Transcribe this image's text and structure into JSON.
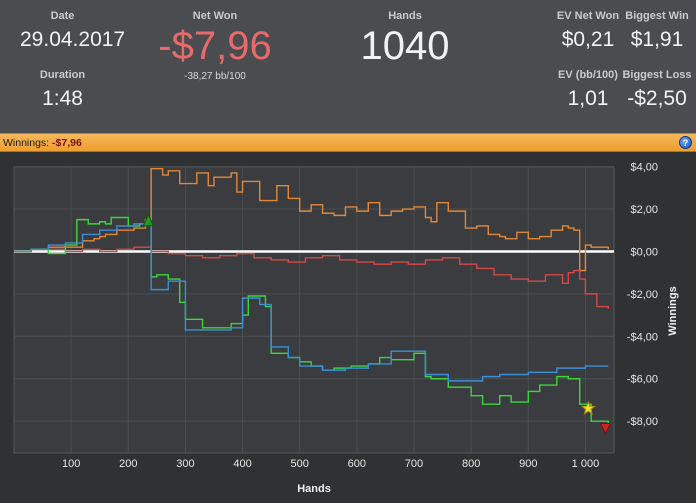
{
  "stats": {
    "date": {
      "label": "Date",
      "value": "29.04.2017"
    },
    "duration": {
      "label": "Duration",
      "value": "1:48"
    },
    "net_won": {
      "label": "Net Won",
      "value": "-$7,96",
      "sub": "-38,27 bb/100"
    },
    "hands": {
      "label": "Hands",
      "value": "1040"
    },
    "ev_net_won": {
      "label": "EV Net Won",
      "value": "$0,21"
    },
    "biggest_win": {
      "label": "Biggest Win",
      "value": "$1,91"
    },
    "ev_bb100": {
      "label": "EV (bb/100)",
      "value": "1,01"
    },
    "biggest_loss": {
      "label": "Biggest Loss",
      "value": "-$2,50"
    }
  },
  "bar": {
    "label": "Winnings:",
    "value": "-$7,96",
    "help_icon": "?"
  },
  "colors": {
    "accent_bar": "#f0a838",
    "net_won_negative": "#e66a6a",
    "orange": "#e0883a",
    "red": "#d64848",
    "green": "#3cd63c",
    "blue": "#3c8fd6",
    "zero_line": "#ffffff"
  },
  "chart_data": {
    "type": "line",
    "xlabel": "Hands",
    "ylabel": "Winnings",
    "xlim": [
      0,
      1050
    ],
    "ylim": [
      -9.5,
      5.3
    ],
    "x_ticks": [
      100,
      200,
      300,
      400,
      500,
      600,
      700,
      800,
      900,
      1000
    ],
    "x_tick_labels": [
      "100",
      "200",
      "300",
      "400",
      "500",
      "600",
      "700",
      "800",
      "900",
      "1 000"
    ],
    "y_ticks": [
      4,
      2,
      0,
      -2,
      -4,
      -6,
      -8
    ],
    "y_tick_labels": [
      "$4,00",
      "$2,00",
      "$0,00",
      "-$2,00",
      "-$4,00",
      "-$6,00",
      "-$8,00"
    ],
    "grid": true,
    "series": [
      {
        "color": "orange",
        "x": [
          0,
          30,
          60,
          90,
          120,
          140,
          150,
          160,
          180,
          210,
          230,
          240,
          260,
          270,
          290,
          320,
          340,
          350,
          380,
          390,
          400,
          430,
          460,
          480,
          500,
          520,
          540,
          560,
          580,
          600,
          620,
          640,
          660,
          680,
          700,
          720,
          730,
          740,
          760,
          790,
          810,
          830,
          850,
          860,
          880,
          900,
          920,
          940,
          960,
          970,
          980,
          990,
          1000,
          1010,
          1020,
          1040
        ],
        "y": [
          0,
          0.1,
          0.2,
          0.2,
          0.5,
          0.6,
          0.7,
          0.8,
          1.0,
          1.1,
          1.5,
          3.9,
          3.6,
          3.8,
          3.2,
          3.7,
          3.1,
          3.5,
          3.7,
          2.8,
          3.3,
          2.4,
          3.1,
          2.5,
          1.9,
          2.2,
          1.8,
          1.7,
          2.1,
          1.9,
          2.3,
          1.7,
          1.9,
          2.0,
          2.1,
          1.6,
          1.4,
          2.3,
          1.9,
          1.1,
          1.2,
          0.8,
          0.7,
          0.6,
          0.9,
          0.6,
          0.7,
          1.0,
          1.2,
          1.1,
          1.0,
          -0.9,
          0.3,
          0.2,
          0.2,
          0.1
        ]
      },
      {
        "color": "red",
        "x": [
          0,
          30,
          60,
          90,
          120,
          150,
          180,
          210,
          240,
          270,
          300,
          330,
          360,
          390,
          420,
          450,
          480,
          510,
          540,
          570,
          600,
          630,
          660,
          690,
          720,
          750,
          780,
          810,
          840,
          870,
          900,
          930,
          960,
          970,
          980,
          990,
          1000,
          1020,
          1040
        ],
        "y": [
          0,
          0.1,
          0.1,
          0.0,
          0.1,
          0.0,
          0.1,
          0.2,
          0.0,
          -0.1,
          -0.2,
          -0.3,
          -0.2,
          -0.1,
          -0.3,
          -0.4,
          -0.5,
          -0.3,
          -0.2,
          -0.4,
          -0.5,
          -0.6,
          -0.5,
          -0.6,
          -0.4,
          -0.3,
          -0.6,
          -0.8,
          -1.1,
          -1.3,
          -1.4,
          -1.1,
          -1.5,
          -1.0,
          -0.9,
          -1.3,
          -2.0,
          -2.6,
          -2.7
        ]
      },
      {
        "color": "green",
        "x": [
          0,
          30,
          60,
          90,
          110,
          130,
          150,
          160,
          170,
          200,
          220,
          235,
          240,
          250,
          270,
          290,
          300,
          330,
          380,
          400,
          410,
          440,
          450,
          480,
          500,
          520,
          540,
          560,
          590,
          620,
          640,
          660,
          700,
          720,
          730,
          760,
          800,
          820,
          850,
          870,
          900,
          920,
          950,
          970,
          990,
          1010,
          1040
        ],
        "y": [
          0,
          0.1,
          -0.1,
          0.3,
          1.5,
          1.3,
          1.4,
          1.3,
          1.6,
          1.2,
          1.3,
          1.4,
          -1.2,
          -1.1,
          -1.3,
          -2.4,
          -3.2,
          -3.6,
          -3.4,
          -3.0,
          -2.1,
          -2.6,
          -4.8,
          -5.0,
          -5.2,
          -5.4,
          -5.6,
          -5.5,
          -5.4,
          -5.3,
          -5.0,
          -5.1,
          -4.8,
          -5.9,
          -6.0,
          -6.4,
          -6.8,
          -7.2,
          -6.8,
          -7.1,
          -6.6,
          -6.3,
          -5.9,
          -6.0,
          -7.2,
          -8.0,
          -8.3
        ]
      },
      {
        "color": "blue",
        "x": [
          0,
          30,
          60,
          90,
          120,
          150,
          180,
          210,
          235,
          240,
          270,
          300,
          330,
          380,
          400,
          430,
          450,
          480,
          500,
          540,
          580,
          620,
          660,
          700,
          720,
          760,
          800,
          820,
          850,
          900,
          950,
          1000,
          1040
        ],
        "y": [
          0,
          0.1,
          0.3,
          0.4,
          0.8,
          1.0,
          1.2,
          1.3,
          1.3,
          -1.8,
          -1.4,
          -3.7,
          -3.7,
          -3.6,
          -2.2,
          -2.5,
          -4.5,
          -5.0,
          -5.4,
          -5.6,
          -5.5,
          -5.3,
          -4.7,
          -4.7,
          -5.8,
          -6.1,
          -6.1,
          -5.9,
          -5.8,
          -5.7,
          -5.5,
          -5.4,
          -5.4
        ]
      }
    ],
    "markers": [
      {
        "shape": "triangle-up",
        "color": "#1e9a1e",
        "x": 235,
        "y": 1.4
      },
      {
        "shape": "star",
        "color": "#f0e030",
        "x": 1005,
        "y": -7.4
      },
      {
        "shape": "triangle-down",
        "color": "#d02020",
        "x": 1035,
        "y": -8.3
      }
    ]
  }
}
